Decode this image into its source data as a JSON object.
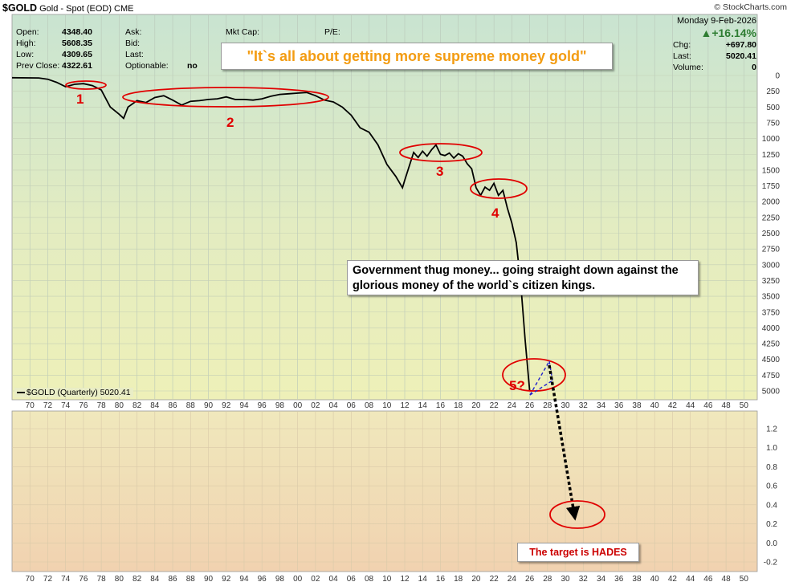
{
  "header": {
    "symbol": "$GOLD",
    "description": "Gold - Spot (EOD)",
    "exchange": "CME",
    "source": "© StockCharts.com"
  },
  "quote": {
    "open_label": "Open:",
    "open": "4348.40",
    "high_label": "High:",
    "high": "5608.35",
    "low_label": "Low:",
    "low": "4309.65",
    "prev_close_label": "Prev Close:",
    "prev_close": "4322.61",
    "ask_label": "Ask:",
    "bid_label": "Bid:",
    "last_label_mid": "Last:",
    "optionable_label": "Optionable:",
    "optionable": "no",
    "mktcap_label": "Mkt Cap:",
    "pe_label": "P/E:",
    "date": "Monday  9-Feb-2026",
    "change_pct": "▲+16.14%",
    "chg_label": "Chg:",
    "chg": "+697.80",
    "last_label": "Last:",
    "last": "5020.41",
    "volume_label": "Volume:",
    "volume": "0"
  },
  "callouts": {
    "title": "\"It`s all about getting more supreme money gold\"",
    "middle": "Government thug money... going straight down against the glorious money of the world`s citizen kings.",
    "target": "The target is HADES"
  },
  "legend": "$GOLD (Quarterly) 5020.41",
  "colors": {
    "line": "#000000",
    "annotation_red": "#e00000",
    "projection_blue": "#2222cc",
    "bg_top": "#c9e4d1",
    "bg_mid": "#eef0b8",
    "bg_bottom": "#f1d5b2"
  },
  "chart_data": [
    {
      "type": "line",
      "y_axis": "inverted",
      "ylim": [
        5000,
        0
      ],
      "yticks": [
        0,
        250,
        500,
        750,
        1000,
        1250,
        1500,
        1750,
        2000,
        2250,
        2500,
        2750,
        3000,
        3250,
        3500,
        3750,
        4000,
        4250,
        4500,
        4750,
        5000
      ],
      "xticks": [
        "70",
        "72",
        "74",
        "76",
        "78",
        "80",
        "82",
        "84",
        "86",
        "88",
        "90",
        "92",
        "94",
        "96",
        "98",
        "00",
        "02",
        "04",
        "06",
        "08",
        "10",
        "12",
        "14",
        "16",
        "18",
        "20",
        "22",
        "24",
        "26",
        "28",
        "30",
        "32",
        "34",
        "36",
        "38",
        "40",
        "42",
        "44",
        "46",
        "48",
        "50"
      ],
      "series": [
        {
          "name": "$GOLD (Quarterly)",
          "x": [
            1968,
            1971,
            1972,
            1973,
            1974,
            1975,
            1976,
            1977,
            1978,
            1979,
            1980,
            1980.5,
            1981,
            1982,
            1983,
            1984,
            1985,
            1986,
            1987,
            1988,
            1989,
            1990,
            1991,
            1992,
            1993,
            1994,
            1995,
            1996,
            1997,
            1998,
            1999,
            2000,
            2001,
            2002,
            2003,
            2004,
            2005,
            2006,
            2007,
            2008,
            2009,
            2010,
            2011,
            2011.75,
            2012,
            2013,
            2013.5,
            2014,
            2014.5,
            2015,
            2015.5,
            2016,
            2016.5,
            2017,
            2017.5,
            2018,
            2018.5,
            2019,
            2019.5,
            2020,
            2020.5,
            2021,
            2021.5,
            2022,
            2022.5,
            2023,
            2023.5,
            2024,
            2024.5,
            2025,
            2025.5,
            2026
          ],
          "values": [
            35,
            40,
            60,
            110,
            180,
            140,
            130,
            160,
            230,
            500,
            615,
            680,
            500,
            400,
            430,
            350,
            320,
            390,
            470,
            410,
            400,
            380,
            370,
            340,
            380,
            380,
            390,
            370,
            330,
            300,
            290,
            280,
            270,
            320,
            390,
            420,
            500,
            630,
            830,
            900,
            1100,
            1410,
            1600,
            1780,
            1660,
            1220,
            1300,
            1200,
            1280,
            1180,
            1100,
            1250,
            1270,
            1230,
            1310,
            1240,
            1280,
            1400,
            1480,
            1780,
            1900,
            1770,
            1820,
            1710,
            1900,
            1820,
            2100,
            2340,
            2650,
            3300,
            4200,
            5000
          ]
        }
      ]
    },
    {
      "type": "line",
      "ylim": [
        -0.2,
        1.3
      ],
      "yticks": [
        -0.2,
        0,
        0.2,
        0.4,
        0.6,
        0.8,
        1.0,
        1.2
      ],
      "xticks": [
        "70",
        "72",
        "74",
        "76",
        "78",
        "80",
        "82",
        "84",
        "86",
        "88",
        "90",
        "92",
        "94",
        "96",
        "98",
        "00",
        "02",
        "04",
        "06",
        "08",
        "10",
        "12",
        "14",
        "16",
        "18",
        "20",
        "22",
        "24",
        "26",
        "28",
        "30",
        "32",
        "34",
        "36",
        "38",
        "40",
        "42",
        "44",
        "46",
        "48",
        "50"
      ]
    }
  ],
  "annotations": {
    "labels": [
      "1",
      "2",
      "3",
      "4",
      "5?"
    ]
  }
}
